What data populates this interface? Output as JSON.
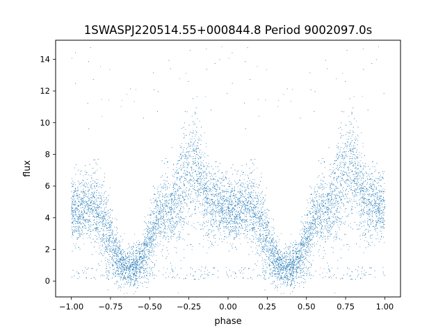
{
  "chart_data": {
    "type": "scatter",
    "title": "1SWASPJ220514.55+000844.8 Period 9002097.0s",
    "xlabel": "phase",
    "ylabel": "flux",
    "xlim": [
      -1.1,
      1.1
    ],
    "ylim": [
      -1.0,
      15.2
    ],
    "xticks": [
      -1.0,
      -0.75,
      -0.5,
      -0.25,
      0.0,
      0.25,
      0.5,
      0.75,
      1.0
    ],
    "xtick_labels": [
      "−1.00",
      "−0.75",
      "−0.50",
      "−0.25",
      "0.00",
      "0.25",
      "0.50",
      "0.75",
      "1.00"
    ],
    "yticks": [
      0,
      2,
      4,
      6,
      8,
      10,
      12,
      14
    ],
    "ytick_labels": [
      "0",
      "2",
      "4",
      "6",
      "8",
      "10",
      "12",
      "14"
    ],
    "grid": false,
    "legend": "none",
    "marker_color": "#1f77b4",
    "description_note": "",
    "series": [
      {
        "profile": {
          "phase": [
            0.0,
            0.05,
            0.1,
            0.15,
            0.2,
            0.25,
            0.3,
            0.35,
            0.4,
            0.45,
            0.5,
            0.55,
            0.6,
            0.65,
            0.7,
            0.75,
            0.8,
            0.85,
            0.9,
            0.95,
            1.0
          ],
          "median_flux": [
            4.5,
            4.3,
            4.7,
            4.8,
            3.8,
            2.5,
            1.2,
            0.8,
            0.9,
            1.3,
            2.5,
            3.8,
            4.3,
            4.8,
            5.5,
            6.8,
            7.2,
            5.5,
            4.8,
            4.7,
            4.5
          ],
          "spread": [
            1.0,
            1.0,
            1.1,
            1.2,
            1.3,
            1.2,
            0.8,
            0.6,
            0.6,
            0.7,
            1.0,
            1.1,
            1.2,
            1.3,
            1.6,
            1.9,
            1.8,
            1.4,
            1.2,
            1.0,
            1.0
          ]
        }
      }
    ]
  }
}
